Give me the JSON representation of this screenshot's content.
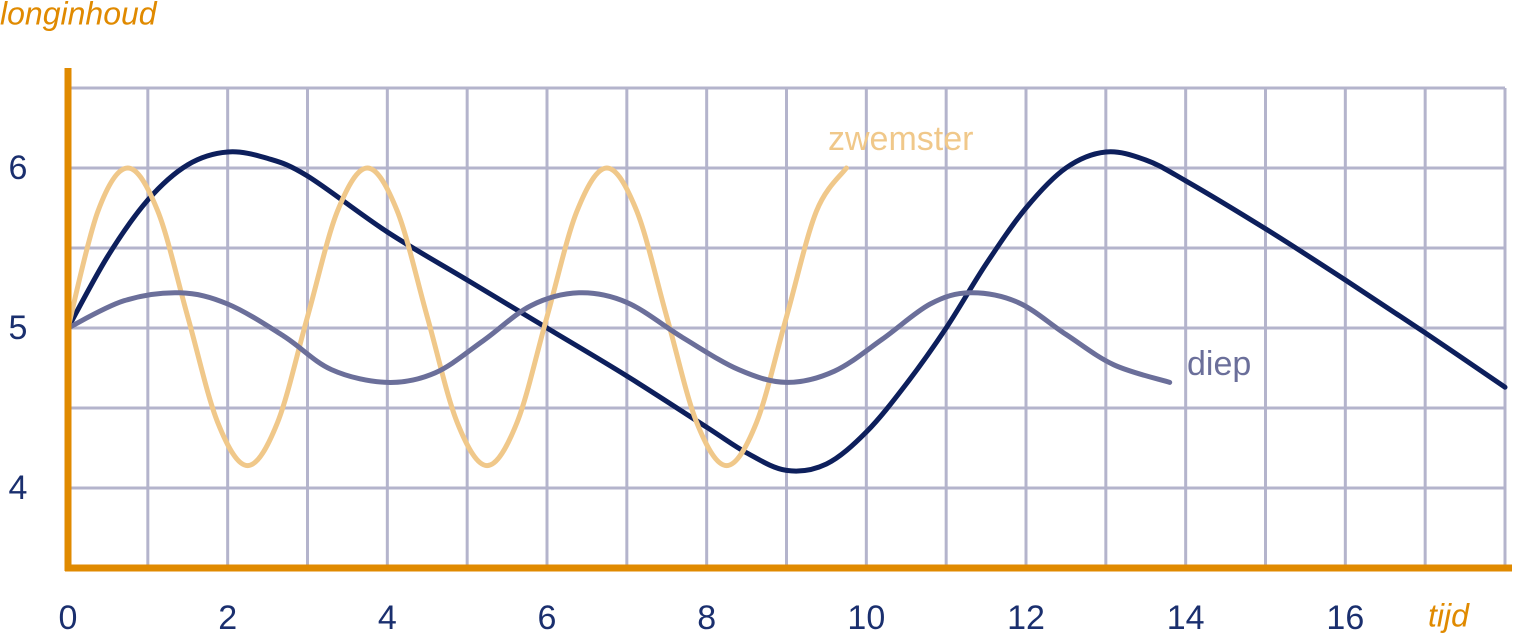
{
  "chart_data": {
    "type": "line",
    "title": "longinhoud",
    "x_label": "tijd",
    "xlim": [
      0,
      18
    ],
    "ylim": [
      3.5,
      6.5
    ],
    "xticks": [
      0,
      2,
      4,
      6,
      8,
      10,
      12,
      14,
      16
    ],
    "yticks": [
      4,
      5,
      6
    ],
    "xgrid": [
      0,
      1,
      2,
      3,
      4,
      5,
      6,
      7,
      8,
      9,
      10,
      11,
      12,
      13,
      14,
      15,
      16,
      17,
      18
    ],
    "ygrid": [
      3.5,
      4,
      4.5,
      5,
      5.5,
      6,
      6.5
    ],
    "grid": true,
    "axis_color": "#e08a00",
    "grid_color": "#b4b4cc",
    "series": [
      {
        "color": "#0d1f5c",
        "x": [
          0,
          0.5,
          1,
          1.5,
          2,
          2.5,
          3,
          4,
          5,
          6,
          7,
          8,
          8.5,
          9,
          9.5,
          10,
          10.5,
          11,
          11.5,
          12,
          12.5,
          13,
          13.5,
          14,
          15,
          16,
          17,
          18
        ],
        "values": [
          5,
          5.45,
          5.8,
          6.02,
          6.1,
          6.06,
          5.95,
          5.6,
          5.3,
          5.0,
          4.7,
          4.38,
          4.22,
          4.11,
          4.15,
          4.35,
          4.65,
          5.0,
          5.4,
          5.75,
          6.0,
          6.1,
          6.05,
          5.92,
          5.62,
          5.3,
          4.97,
          4.63
        ]
      },
      {
        "name": "zwemster",
        "color": "#f0c88a",
        "x": [
          0,
          0.375,
          0.75,
          1.125,
          1.5,
          1.875,
          2.25,
          2.625,
          3,
          3.375,
          3.75,
          4.125,
          4.5,
          4.875,
          5.25,
          5.625,
          6,
          6.375,
          6.75,
          7.125,
          7.5,
          7.875,
          8.25,
          8.625,
          9,
          9.375,
          9.75
        ],
        "values": [
          5,
          5.73,
          6.0,
          5.73,
          5.07,
          4.41,
          4.14,
          4.41,
          5.07,
          5.73,
          6.0,
          5.73,
          5.07,
          4.41,
          4.14,
          4.41,
          5.07,
          5.73,
          6.0,
          5.73,
          5.07,
          4.41,
          4.14,
          4.41,
          5.07,
          5.73,
          6.0
        ]
      },
      {
        "name": "diep",
        "color": "#6b6f9a",
        "x": [
          0,
          0.7,
          1.4,
          2.0,
          2.7,
          3.3,
          4,
          4.6,
          5.2,
          5.8,
          6.4,
          7,
          7.7,
          8.4,
          9,
          9.6,
          10.2,
          10.8,
          11.3,
          11.9,
          12.5,
          13.1,
          13.8
        ],
        "values": [
          5,
          5.17,
          5.22,
          5.15,
          4.95,
          4.74,
          4.66,
          4.72,
          4.92,
          5.14,
          5.22,
          5.16,
          4.94,
          4.74,
          4.66,
          4.73,
          4.93,
          5.15,
          5.22,
          5.16,
          4.96,
          4.77,
          4.66
        ]
      }
    ]
  }
}
